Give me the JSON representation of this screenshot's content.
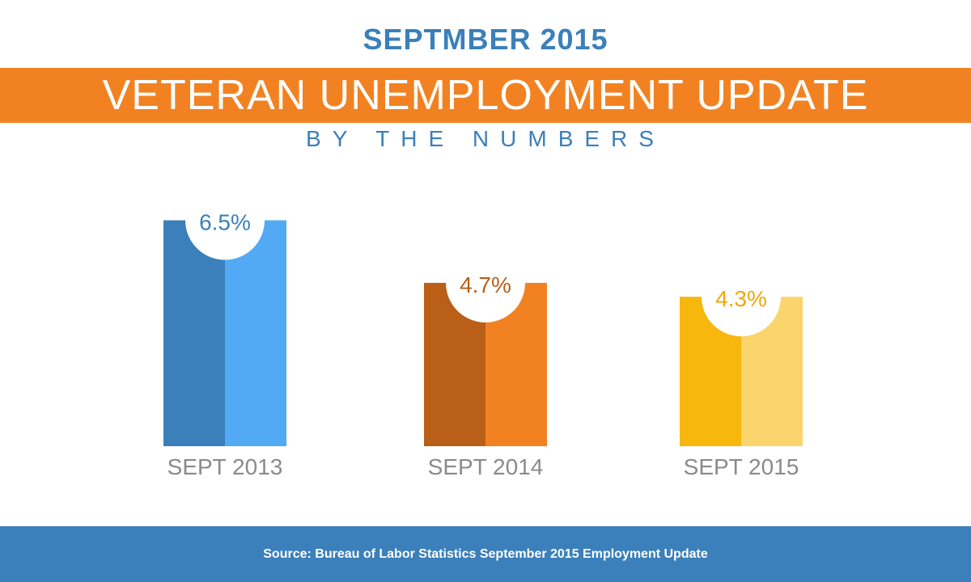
{
  "header": {
    "month_title": "SEPTMBER 2015",
    "banner_title": "VETERAN UNEMPLOYMENT UPDATE",
    "subtitle": "BY THE NUMBERS"
  },
  "colors": {
    "title_blue": "#3b80ba",
    "banner_orange": "#f28221",
    "axis_label_gray": "#8a8a8a",
    "footer_blue": "#3b80ba"
  },
  "chart_data": {
    "type": "bar",
    "categories": [
      "SEPT 2013",
      "SEPT 2014",
      "SEPT 2015"
    ],
    "values": [
      6.5,
      4.7,
      4.3
    ],
    "labels": [
      "6.5%",
      "4.7%",
      "4.3%"
    ],
    "unit": "%",
    "ylim": [
      0,
      8.5
    ],
    "grid": false,
    "title": "VETERAN UNEMPLOYMENT UPDATE",
    "colors": [
      {
        "dark": "#3b80ba",
        "light": "#52aaf5",
        "label": "#3b80ba"
      },
      {
        "dark": "#b95f17",
        "light": "#f28221",
        "label": "#b95f17"
      },
      {
        "dark": "#f7b70d",
        "light": "#fad56e",
        "label": "#f2a70a"
      }
    ]
  },
  "footer": {
    "source": "Source: Bureau of Labor Statistics September 2015 Employment Update"
  }
}
